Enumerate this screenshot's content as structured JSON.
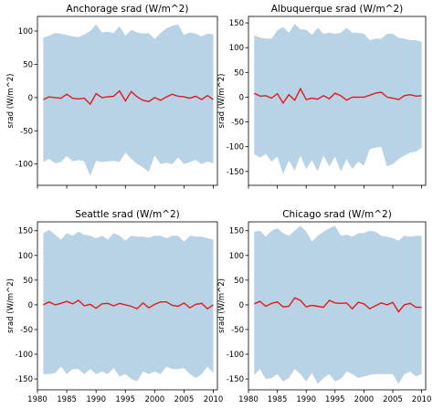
{
  "colors": {
    "band": "#b8d2e6",
    "line": "#e31a1c",
    "axis": "#000000"
  },
  "x_ticks": [
    1980,
    1985,
    1990,
    1995,
    2000,
    2005,
    2010
  ],
  "chart_data": [
    {
      "type": "area",
      "title": "Anchorage srad (W/m^2)",
      "ylabel": "srad (W/m^2)",
      "xlabel": "",
      "xlim": [
        1980,
        2010.7
      ],
      "ylim": [
        -132,
        122
      ],
      "yticks": [
        100,
        50,
        0,
        -50,
        -100
      ],
      "show_xticklabels": false,
      "x": [
        1981,
        1982,
        1983,
        1984,
        1985,
        1986,
        1987,
        1988,
        1989,
        1990,
        1991,
        1992,
        1993,
        1994,
        1995,
        1996,
        1997,
        1998,
        1999,
        2000,
        2001,
        2002,
        2003,
        2004,
        2005,
        2006,
        2007,
        2008,
        2009,
        2010
      ],
      "series": [
        {
          "role": "band_upper",
          "values": [
            90,
            93,
            97,
            96,
            94,
            92,
            91,
            95,
            100,
            110,
            98,
            99,
            97,
            107,
            93,
            102,
            98,
            96,
            97,
            88,
            97,
            104,
            108,
            110,
            94,
            98,
            96,
            92,
            96,
            95
          ]
        },
        {
          "role": "mean",
          "values": [
            -3,
            1,
            0,
            -1,
            5,
            -1,
            -2,
            -1,
            -10,
            6,
            0,
            1,
            2,
            10,
            -5,
            9,
            1,
            -4,
            -6,
            0,
            -4,
            1,
            5,
            2,
            1,
            -1,
            2,
            -3,
            3,
            -3
          ]
        },
        {
          "role": "band_lower",
          "values": [
            -97,
            -92,
            -99,
            -97,
            -88,
            -96,
            -94,
            -96,
            -118,
            -95,
            -97,
            -96,
            -95,
            -97,
            -83,
            -92,
            -100,
            -105,
            -112,
            -87,
            -100,
            -98,
            -100,
            -90,
            -100,
            -97,
            -94,
            -100,
            -96,
            -99
          ]
        }
      ]
    },
    {
      "type": "area",
      "title": "Albuquerque srad (W/m^2)",
      "ylabel": "srad (W/m^2)",
      "xlabel": "",
      "xlim": [
        1980,
        2010.7
      ],
      "ylim": [
        -178,
        163
      ],
      "yticks": [
        150,
        100,
        50,
        0,
        -50,
        -100,
        -150
      ],
      "show_xticklabels": false,
      "x": [
        1981,
        1982,
        1983,
        1984,
        1985,
        1986,
        1987,
        1988,
        1989,
        1990,
        1991,
        1992,
        1993,
        1994,
        1995,
        1996,
        1997,
        1998,
        1999,
        2000,
        2001,
        2002,
        2003,
        2004,
        2005,
        2006,
        2007,
        2008,
        2009,
        2010
      ],
      "series": [
        {
          "role": "band_upper",
          "values": [
            125,
            120,
            118,
            118,
            135,
            142,
            130,
            148,
            137,
            136,
            126,
            140,
            128,
            130,
            128,
            130,
            140,
            130,
            130,
            128,
            115,
            118,
            118,
            128,
            128,
            120,
            118,
            115,
            115,
            112
          ]
        },
        {
          "role": "mean",
          "values": [
            8,
            2,
            3,
            -2,
            7,
            -12,
            5,
            -6,
            17,
            -5,
            -2,
            -4,
            3,
            -3,
            8,
            3,
            -6,
            0,
            0,
            0,
            4,
            8,
            10,
            0,
            -2,
            -5,
            3,
            5,
            2,
            3
          ]
        },
        {
          "role": "band_lower",
          "values": [
            -115,
            -122,
            -115,
            -130,
            -120,
            -155,
            -128,
            -148,
            -118,
            -145,
            -127,
            -150,
            -118,
            -140,
            -120,
            -150,
            -125,
            -145,
            -130,
            -138,
            -105,
            -102,
            -100,
            -140,
            -135,
            -125,
            -118,
            -112,
            -110,
            -102
          ]
        }
      ]
    },
    {
      "type": "area",
      "title": "Seattle srad (W/m^2)",
      "ylabel": "srad (W/m^2)",
      "xlabel": "",
      "xlim": [
        1980,
        2010.7
      ],
      "ylim": [
        -172,
        168
      ],
      "yticks": [
        150,
        100,
        50,
        0,
        -50,
        -100,
        -150
      ],
      "show_xticklabels": true,
      "x": [
        1981,
        1982,
        1983,
        1984,
        1985,
        1986,
        1987,
        1988,
        1989,
        1990,
        1991,
        1992,
        1993,
        1994,
        1995,
        1996,
        1997,
        1998,
        1999,
        2000,
        2001,
        2002,
        2003,
        2004,
        2005,
        2006,
        2007,
        2008,
        2009,
        2010
      ],
      "series": [
        {
          "role": "band_upper",
          "values": [
            145,
            152,
            142,
            132,
            145,
            140,
            148,
            142,
            140,
            135,
            140,
            132,
            145,
            140,
            130,
            140,
            138,
            138,
            136,
            140,
            140,
            135,
            140,
            140,
            128,
            140,
            138,
            138,
            135,
            132
          ]
        },
        {
          "role": "mean",
          "values": [
            0,
            6,
            0,
            3,
            7,
            2,
            9,
            -2,
            1,
            -7,
            2,
            3,
            -2,
            3,
            0,
            -3,
            -8,
            4,
            -6,
            1,
            6,
            6,
            -1,
            -3,
            4,
            -6,
            1,
            3,
            -8,
            0
          ]
        },
        {
          "role": "band_lower",
          "values": [
            -140,
            -140,
            -138,
            -125,
            -140,
            -130,
            -130,
            -140,
            -130,
            -140,
            -135,
            -140,
            -128,
            -145,
            -140,
            -150,
            -155,
            -135,
            -140,
            -135,
            -140,
            -125,
            -130,
            -130,
            -128,
            -140,
            -148,
            -140,
            -125,
            -138
          ]
        }
      ]
    },
    {
      "type": "area",
      "title": "Chicago srad (W/m^2)",
      "ylabel": "srad (W/m^2)",
      "xlabel": "",
      "xlim": [
        1980,
        2010.7
      ],
      "ylim": [
        -172,
        168
      ],
      "yticks": [
        150,
        100,
        50,
        0,
        -50,
        -100,
        -150
      ],
      "show_xticklabels": true,
      "x": [
        1981,
        1982,
        1983,
        1984,
        1985,
        1986,
        1987,
        1988,
        1989,
        1990,
        1991,
        1992,
        1993,
        1994,
        1995,
        1996,
        1997,
        1998,
        1999,
        2000,
        2001,
        2002,
        2003,
        2004,
        2005,
        2006,
        2007,
        2008,
        2009,
        2010
      ],
      "series": [
        {
          "role": "band_upper",
          "values": [
            148,
            150,
            138,
            150,
            155,
            145,
            140,
            150,
            160,
            148,
            128,
            140,
            148,
            155,
            160,
            140,
            142,
            138,
            145,
            145,
            150,
            148,
            140,
            138,
            135,
            130,
            140,
            138,
            140,
            140
          ]
        },
        {
          "role": "mean",
          "values": [
            2,
            7,
            -3,
            3,
            6,
            -4,
            -3,
            14,
            9,
            -4,
            -1,
            -3,
            -5,
            9,
            4,
            3,
            4,
            -8,
            5,
            2,
            -8,
            -2,
            4,
            0,
            5,
            -14,
            0,
            3,
            -5,
            -5
          ]
        },
        {
          "role": "band_lower",
          "values": [
            -142,
            -130,
            -150,
            -148,
            -140,
            -155,
            -148,
            -130,
            -140,
            -155,
            -138,
            -160,
            -148,
            -140,
            -155,
            -150,
            -135,
            -140,
            -148,
            -145,
            -142,
            -140,
            -140,
            -140,
            -140,
            -160,
            -140,
            -135,
            -145,
            -140
          ]
        }
      ]
    }
  ]
}
